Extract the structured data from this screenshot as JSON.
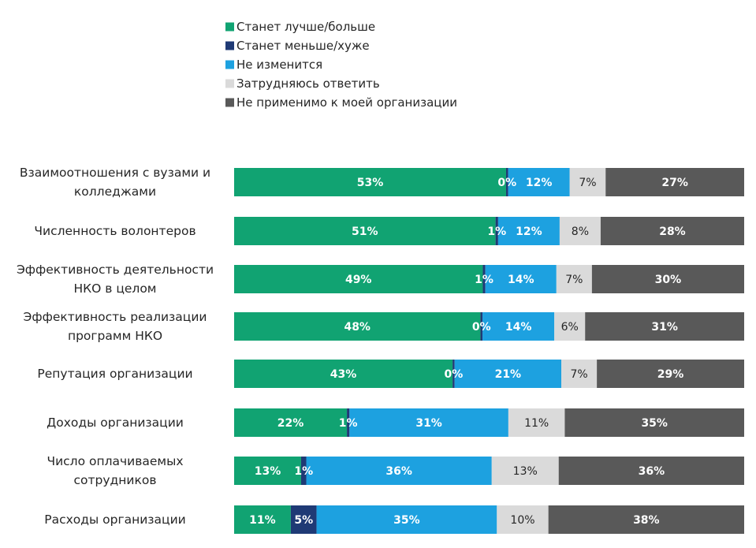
{
  "chart_data": {
    "type": "bar",
    "orientation": "horizontal",
    "stacked": true,
    "normalized": true,
    "title": "",
    "xlabel": "",
    "ylabel": "",
    "xlim": [
      0,
      100
    ],
    "grid": false,
    "legend_position": "top",
    "categories": [
      [
        "Взаимоотношения с вузами и",
        "колледжами"
      ],
      [
        "Численность волонтеров"
      ],
      [
        "Эффективность деятельности",
        "НКО в целом"
      ],
      [
        "Эффективность реализации",
        "программ НКО"
      ],
      [
        "Репутация организации"
      ],
      [
        "Доходы организации"
      ],
      [
        "Число оплачиваемых",
        "сотрудников"
      ],
      [
        "Расходы организации"
      ]
    ],
    "series": [
      {
        "name": "Станет лучше/больше",
        "color": "#11A372",
        "label_color": "#ffffff",
        "label_bold": true,
        "values": [
          53,
          51,
          49,
          48,
          43,
          22,
          13,
          11
        ],
        "labels": [
          "53%",
          "51%",
          "49%",
          "48%",
          "43%",
          "22%",
          "13%",
          "11%"
        ]
      },
      {
        "name": "Станет меньше/хуже",
        "color": "#1F3A75",
        "label_color": "#ffffff",
        "label_bold": true,
        "values": [
          0.4,
          0.5,
          0.5,
          0.4,
          0.4,
          0.5,
          1,
          5
        ],
        "labels": [
          "0%",
          "1%",
          "1%",
          "0%",
          "0%",
          "1%",
          "1%",
          "5%"
        ]
      },
      {
        "name": "Не изменится",
        "color": "#1DA1E0",
        "label_color": "#ffffff",
        "label_bold": true,
        "values": [
          12,
          12,
          14,
          14,
          21,
          31,
          36,
          35
        ],
        "labels": [
          "12%",
          "12%",
          "14%",
          "14%",
          "21%",
          "31%",
          "36%",
          "35%"
        ]
      },
      {
        "name": "Затрудняюсь ответить",
        "color": "#DADADA",
        "label_color": "#262626",
        "label_bold": false,
        "values": [
          7,
          8,
          7,
          6,
          7,
          11,
          13,
          10
        ],
        "labels": [
          "7%",
          "8%",
          "7%",
          "6%",
          "7%",
          "11%",
          "13%",
          "10%"
        ]
      },
      {
        "name": "Не применимо к моей организации",
        "color": "#595959",
        "label_color": "#ffffff",
        "label_bold": true,
        "values": [
          27,
          28,
          30,
          31,
          29,
          35,
          36,
          38
        ],
        "labels": [
          "27%",
          "28%",
          "30%",
          "31%",
          "29%",
          "35%",
          "36%",
          "38%"
        ]
      }
    ]
  }
}
